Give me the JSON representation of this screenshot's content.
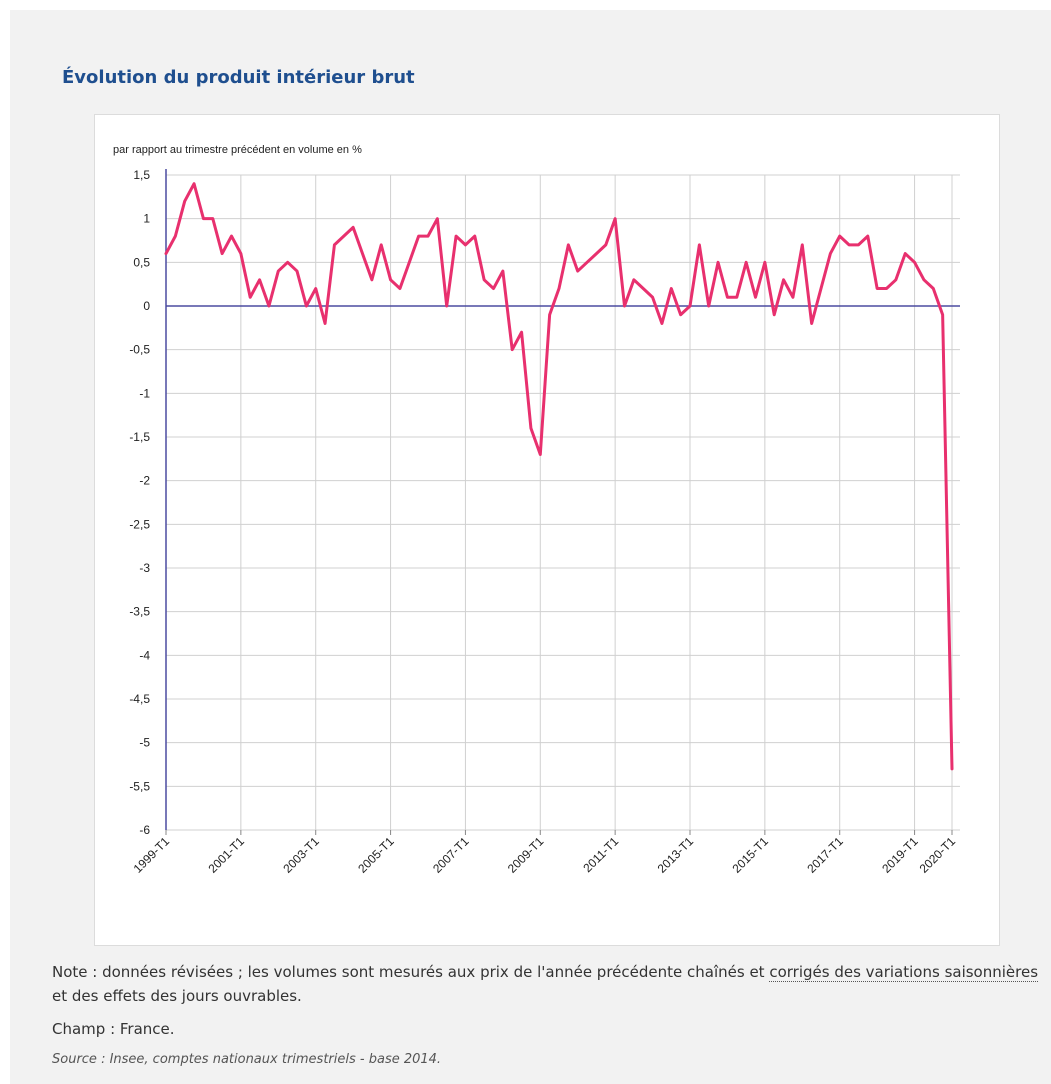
{
  "title": "Évolution du produit intérieur brut",
  "note": {
    "prefix": "Note : données révisées ; les volumes sont mesurés aux prix de l'année précédente chaînés et ",
    "link": "corrigés des variations saisonnières",
    "suffix": " et des effets des jours ouvrables."
  },
  "champ": "Champ : France.",
  "source": "Source : Insee, comptes nationaux trimestriels - base 2014.",
  "colors": {
    "series": "#e8306e",
    "zero_line": "#4b4ba0",
    "grid": "#d0d0d0",
    "title": "#1f4f8f"
  },
  "chart_data": {
    "type": "line",
    "title": "",
    "subtitle": "par rapport au trimestre précédent en volume en %",
    "xlabel": "",
    "ylabel": "",
    "ylim": [
      -6,
      1.5
    ],
    "yticks": [
      "1,5",
      "1",
      "0,5",
      "0",
      "-0,5",
      "-1",
      "-1,5",
      "-2",
      "-2,5",
      "-3",
      "-3,5",
      "-4",
      "-4,5",
      "-5",
      "-5,5",
      "-6"
    ],
    "ytick_values": [
      1.5,
      1,
      0.5,
      0,
      -0.5,
      -1,
      -1.5,
      -2,
      -2.5,
      -3,
      -3.5,
      -4,
      -4.5,
      -5,
      -5.5,
      -6
    ],
    "xtick_labels": [
      "1999-T1",
      "2001-T1",
      "2003-T1",
      "2005-T1",
      "2007-T1",
      "2009-T1",
      "2011-T1",
      "2013-T1",
      "2015-T1",
      "2017-T1",
      "2019-T1",
      "2020-T1"
    ],
    "grid": true,
    "legend": "none",
    "series": [
      {
        "x_start": "1999-T1",
        "x_end": "2020-T1",
        "values": [
          0.6,
          0.8,
          1.2,
          1.4,
          1.0,
          1.0,
          0.6,
          0.8,
          0.6,
          0.1,
          0.3,
          0.0,
          0.4,
          0.5,
          0.4,
          0.0,
          0.2,
          -0.2,
          0.7,
          0.8,
          0.9,
          0.6,
          0.3,
          0.7,
          0.3,
          0.2,
          0.5,
          0.8,
          0.8,
          1.0,
          0.0,
          0.8,
          0.7,
          0.8,
          0.3,
          0.2,
          0.4,
          -0.5,
          -0.3,
          -1.4,
          -1.7,
          -0.1,
          0.2,
          0.7,
          0.4,
          0.5,
          0.6,
          0.7,
          1.0,
          0.0,
          0.3,
          0.2,
          0.1,
          -0.2,
          0.2,
          -0.1,
          0.0,
          0.7,
          0.0,
          0.5,
          0.1,
          0.1,
          0.5,
          0.1,
          0.5,
          -0.1,
          0.3,
          0.1,
          0.7,
          -0.2,
          0.2,
          0.6,
          0.8,
          0.7,
          0.7,
          0.8,
          0.2,
          0.2,
          0.3,
          0.6,
          0.5,
          0.3,
          0.2,
          -0.1,
          -5.3
        ]
      }
    ]
  }
}
